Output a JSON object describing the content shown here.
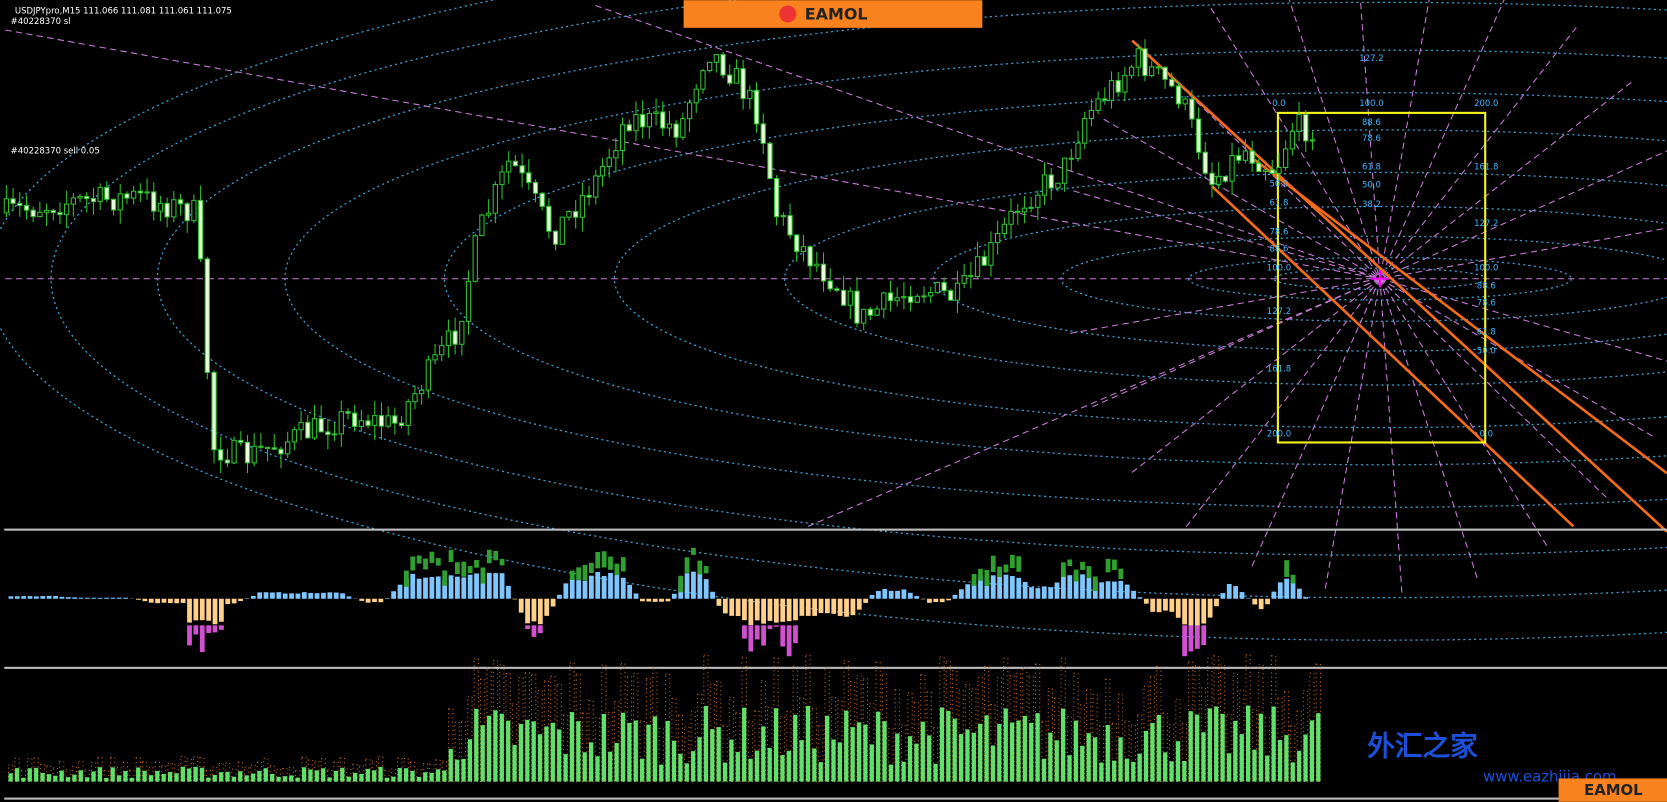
{
  "header": {
    "symbol_line": "USDJPYpro,M15 111.066 111.081 111.061 111.075",
    "order_line": "#40228370 sl",
    "order_label": "#40228370 sell 0.05"
  },
  "banner": {
    "logo": "EAMOL"
  },
  "fib_labels": {
    "top": [
      "127.2",
      "100.0",
      "88.6",
      "78.6",
      "61.8",
      "50.0",
      "38.2"
    ],
    "left": [
      "0.0",
      "50.0",
      "61.8",
      "78.6",
      "88.6",
      "100.0",
      "127.2",
      "161.8",
      "200.0"
    ],
    "right": [
      "200.0",
      "161.8",
      "127.2",
      "100.0",
      "88.6",
      "78.6",
      "61.8",
      "50.0",
      "0.0"
    ]
  },
  "watermark": {
    "site": "外汇之家",
    "url": "www.eazhijia.com",
    "logo": "EAMOL"
  }
}
